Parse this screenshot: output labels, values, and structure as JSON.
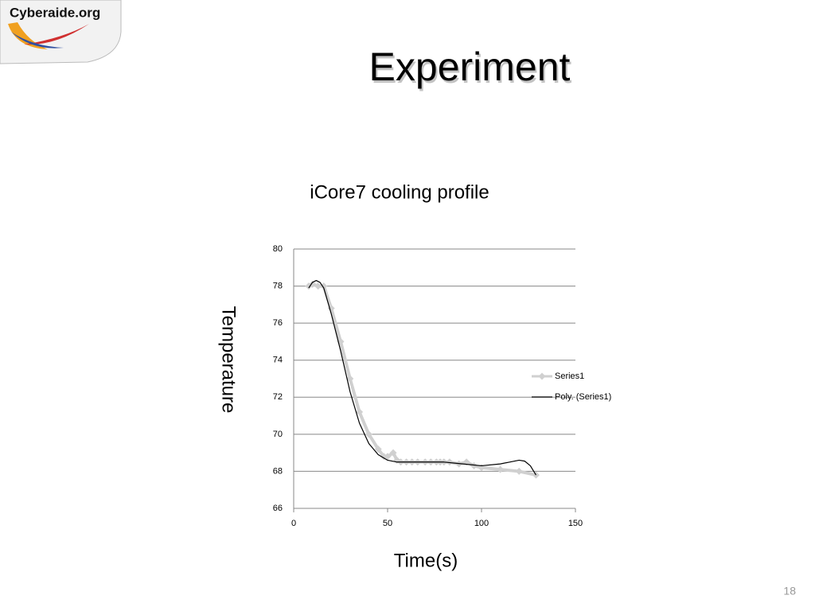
{
  "slide": {
    "logo": "Cyberaide.org",
    "title": "Experiment",
    "page_number": "18"
  },
  "chart_data": {
    "type": "line",
    "title": "iCore7 cooling profile",
    "x_label": "Time(s)",
    "y_label": "Temperature",
    "xlim": [
      0,
      150
    ],
    "xticks": [
      0,
      50,
      100,
      150
    ],
    "ylim": [
      66,
      80
    ],
    "yticks": [
      66,
      68,
      70,
      72,
      74,
      76,
      78,
      80
    ],
    "grid": true,
    "legend": "right",
    "series": [
      {
        "name": "Series1",
        "color": "#d0d0d0",
        "marker": "diamond",
        "line_width": 4,
        "x": [
          8,
          10,
          13,
          16,
          20,
          25,
          30,
          35,
          40,
          45,
          48,
          50,
          53,
          55,
          57,
          60,
          63,
          66,
          70,
          73,
          76,
          78,
          80,
          83,
          88,
          92,
          96,
          100,
          110,
          120,
          129
        ],
        "values": [
          78,
          78.1,
          78,
          78,
          76.8,
          75,
          73,
          71.2,
          70,
          69.2,
          68.8,
          68.8,
          69,
          68.6,
          68.5,
          68.5,
          68.5,
          68.5,
          68.5,
          68.5,
          68.5,
          68.5,
          68.5,
          68.5,
          68.4,
          68.5,
          68.3,
          68.2,
          68.1,
          68,
          67.8
        ]
      },
      {
        "name": "Poly. (Series1)",
        "color": "#000000",
        "marker": "none",
        "line_width": 1.2,
        "x": [
          8,
          10,
          12,
          14,
          16,
          20,
          25,
          30,
          35,
          40,
          45,
          50,
          55,
          60,
          70,
          80,
          90,
          100,
          110,
          115,
          120,
          123,
          126,
          129
        ],
        "values": [
          77.9,
          78.2,
          78.3,
          78.2,
          77.9,
          76.5,
          74.5,
          72.3,
          70.6,
          69.5,
          68.9,
          68.6,
          68.5,
          68.5,
          68.5,
          68.5,
          68.4,
          68.3,
          68.4,
          68.5,
          68.6,
          68.55,
          68.3,
          67.8
        ]
      }
    ]
  }
}
